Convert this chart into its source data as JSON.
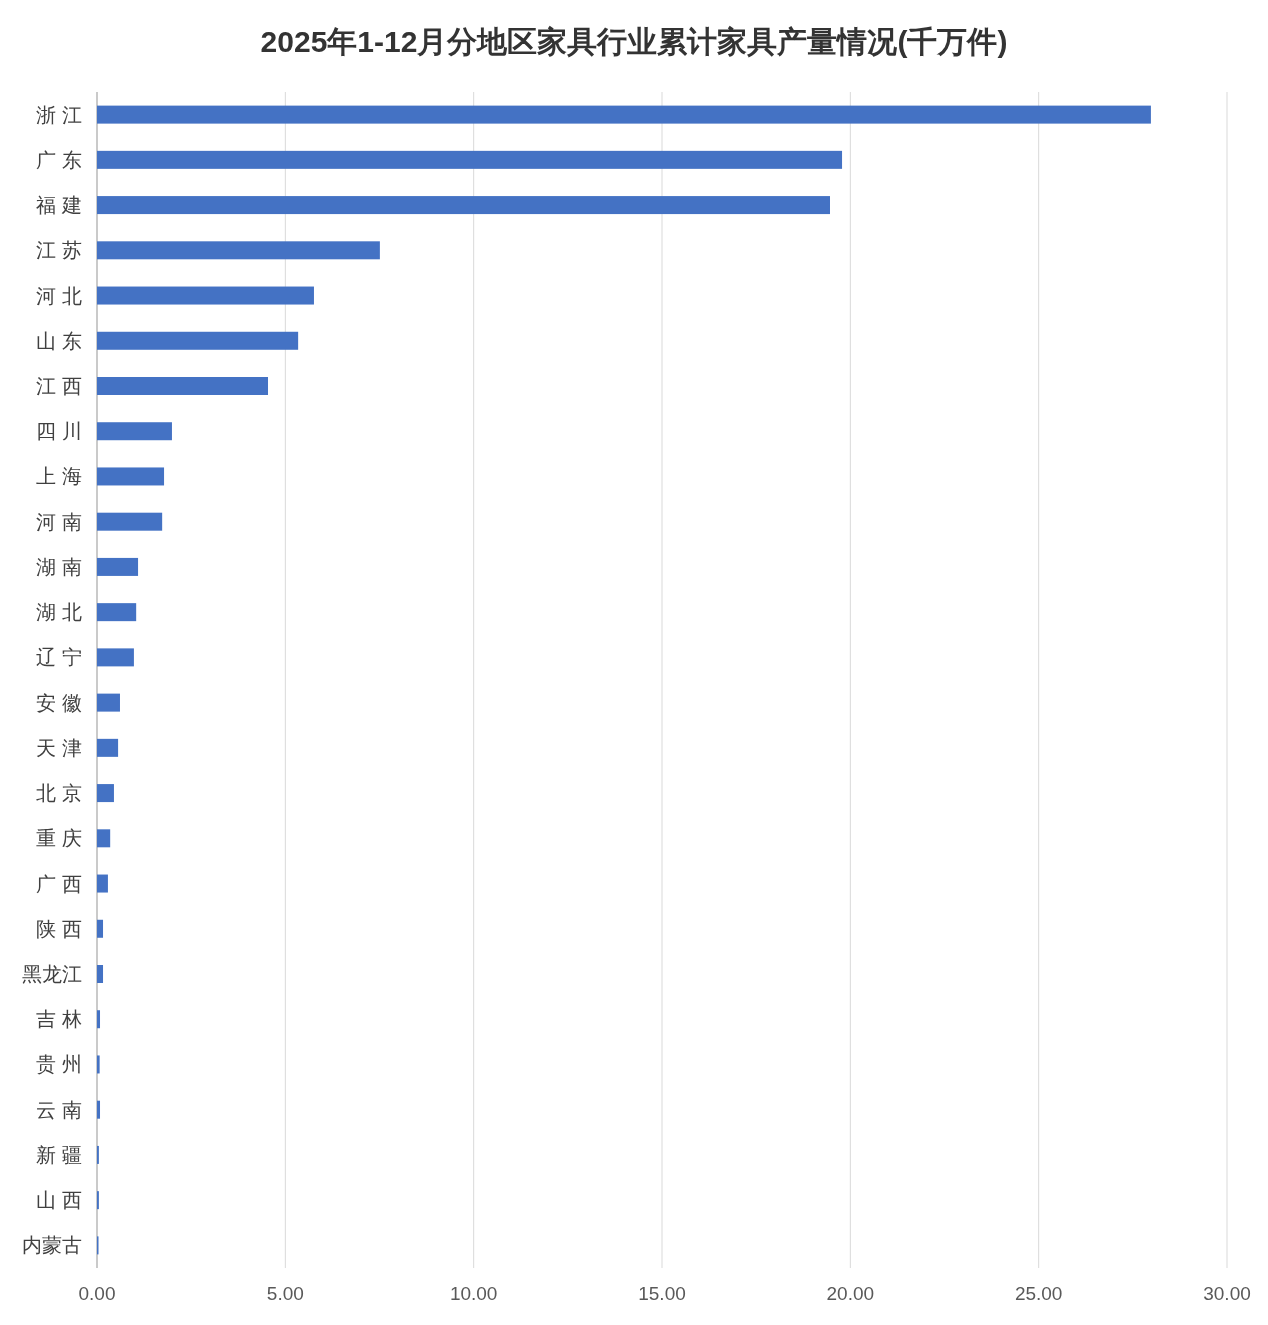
{
  "chart_data": {
    "type": "bar",
    "orientation": "horizontal",
    "title": "2025年1-12月分地区家具行业累计家具产量情况(千万件)",
    "categories": [
      "浙 江",
      "广 东",
      "福 建",
      "江 苏",
      "河 北",
      "山 东",
      "江 西",
      "四 川",
      "上 海",
      "河 南",
      "湖 南",
      "湖 北",
      "辽 宁",
      "安 徽",
      "天 津",
      "北 京",
      "重 庆",
      "广 西",
      "陕 西",
      "黑龙江",
      "吉 林",
      "贵 州",
      "云 南",
      "新 疆",
      "山 西",
      "内蒙古"
    ],
    "values": [
      27.98,
      19.78,
      19.46,
      7.51,
      5.76,
      5.34,
      4.54,
      1.99,
      1.78,
      1.73,
      1.09,
      1.04,
      0.98,
      0.61,
      0.56,
      0.45,
      0.35,
      0.29,
      0.16,
      0.16,
      0.08,
      0.07,
      0.08,
      0.05,
      0.05,
      0.04
    ],
    "color": "#4472c4",
    "xlim": [
      0,
      30
    ],
    "xticks": [
      {
        "value": 0,
        "label": "0.00"
      },
      {
        "value": 5,
        "label": "5.00"
      },
      {
        "value": 10,
        "label": "10.00"
      },
      {
        "value": 15,
        "label": "15.00"
      },
      {
        "value": 20,
        "label": "20.00"
      },
      {
        "value": 25,
        "label": "25.00"
      },
      {
        "value": 30,
        "label": "30.00"
      }
    ],
    "grid": "x"
  }
}
